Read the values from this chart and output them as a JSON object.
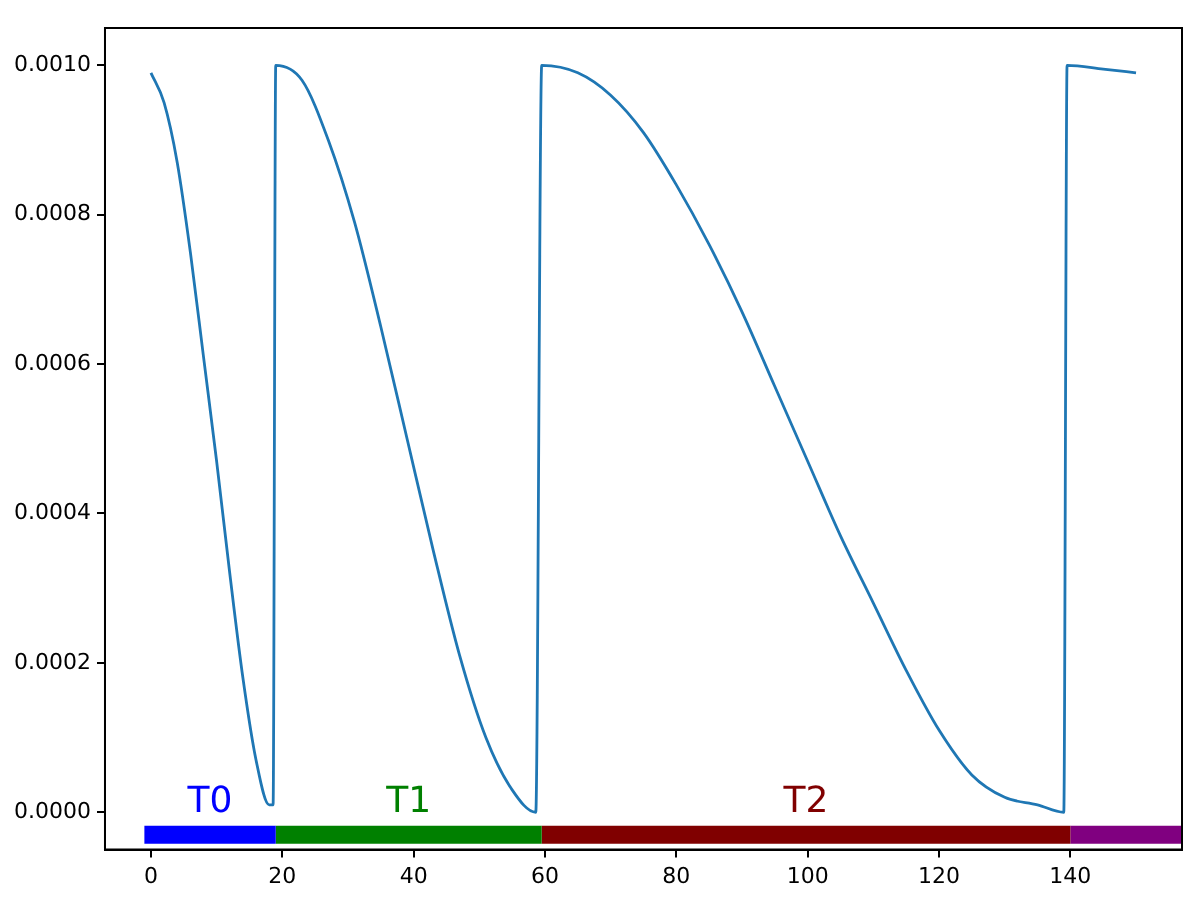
{
  "chart_data": {
    "type": "line",
    "series": [
      {
        "color": "#1f77b4",
        "x": [
          0,
          2,
          4,
          6,
          8,
          10,
          12,
          14,
          16,
          18,
          18.6,
          19,
          23,
          27,
          31,
          35,
          39,
          43,
          47,
          51,
          55,
          58.6,
          59.5,
          65,
          70,
          75,
          80,
          85,
          90,
          95,
          100,
          105,
          110,
          115,
          120,
          125,
          130,
          135,
          139,
          139.5,
          145,
          150
        ],
        "values": [
          0.00099,
          0.00095,
          0.00087,
          0.00075,
          0.00061,
          0.00047,
          0.00032,
          0.00018,
          7e-05,
          1e-05,
          1e-05,
          0.001,
          0.00098,
          0.0009,
          0.00079,
          0.00065,
          0.0005,
          0.00035,
          0.00021,
          0.0001,
          3e-05,
          0.0,
          0.001,
          0.00099,
          0.00096,
          0.00091,
          0.00084,
          0.00076,
          0.00067,
          0.00057,
          0.00047,
          0.00037,
          0.00028,
          0.00019,
          0.00011,
          5e-05,
          2e-05,
          1e-05,
          0.0,
          0.001,
          0.000995,
          0.00099
        ]
      },
      {
        "name": "T0",
        "color": "#0000ff",
        "x": [
          -1,
          19
        ],
        "values": [
          -3e-05,
          -3e-05
        ]
      },
      {
        "name": "T1",
        "color": "#008000",
        "x": [
          19,
          59.5
        ],
        "values": [
          -3e-05,
          -3e-05
        ]
      },
      {
        "name": "T2",
        "color": "#800000",
        "x": [
          59.5,
          140
        ],
        "values": [
          -3e-05,
          -3e-05
        ]
      },
      {
        "color": "#800080",
        "x": [
          140,
          157
        ],
        "values": [
          -3e-05,
          -3e-05
        ]
      }
    ],
    "xlim": [
      -7,
      157
    ],
    "xticks": [
      0,
      20,
      40,
      60,
      80,
      100,
      120,
      140
    ],
    "ylim": [
      -5e-05,
      0.00105
    ],
    "yticks": [
      {
        "value": 0,
        "label": "0.0000"
      },
      {
        "value": 0.0002,
        "label": "0.0002"
      },
      {
        "value": 0.0004,
        "label": "0.0004"
      },
      {
        "value": 0.0006,
        "label": "0.0006"
      },
      {
        "value": 0.0008,
        "label": "0.0008"
      },
      {
        "value": 0.001,
        "label": "0.0010"
      }
    ],
    "grid": false,
    "legend": false
  }
}
